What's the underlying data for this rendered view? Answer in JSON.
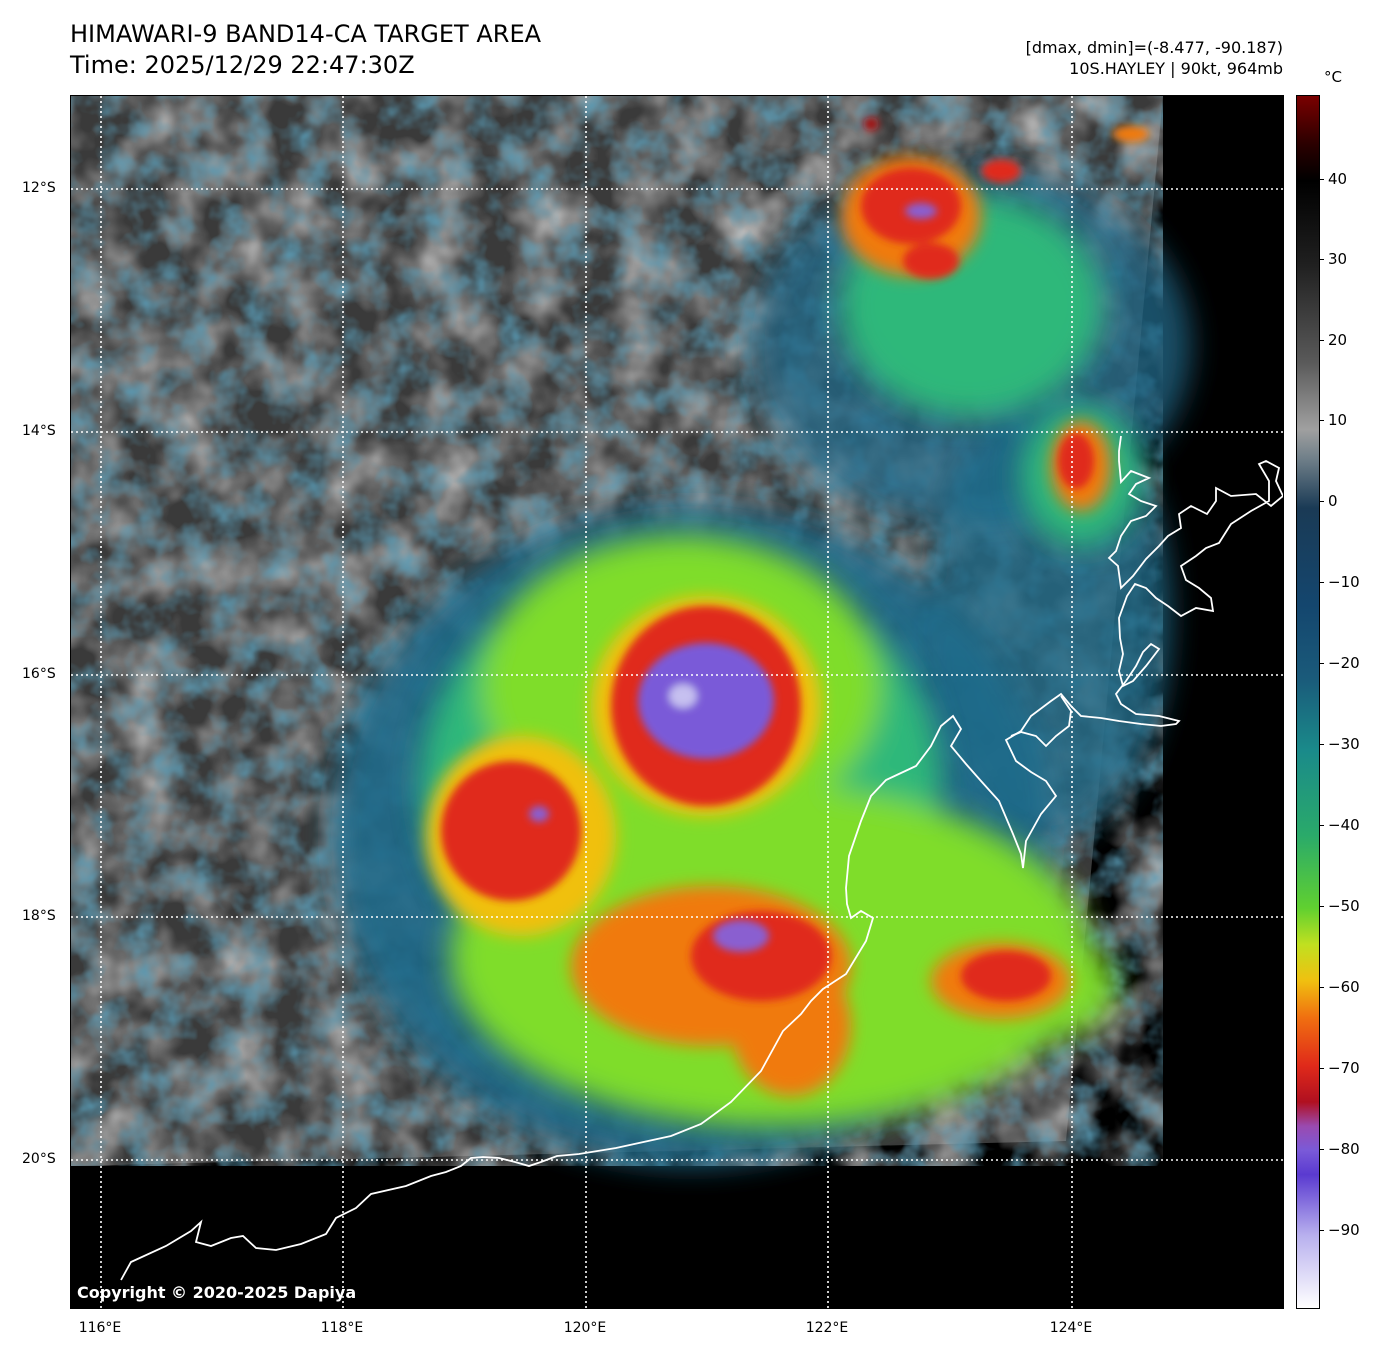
{
  "header": {
    "title": "HIMAWARI-9 BAND14-CA TARGET AREA",
    "time": "Time: 2025/12/29 22:47:30Z",
    "stats": "[dmax, dmin]=(-8.477, -90.187)",
    "storm": "10S.HAYLEY | 90kt, 964mb"
  },
  "map": {
    "copyright": "Copyright © 2020-2025 Dapiya",
    "lon_labels": [
      "116°E",
      "118°E",
      "120°E",
      "122°E",
      "124°E"
    ],
    "lat_labels": [
      "12°S",
      "14°S",
      "16°S",
      "18°S",
      "20°S"
    ],
    "colors": {
      "coldest_core": "#7a5ad8",
      "deep_convection": "#e02a1a",
      "cold_tops": "#f07a10",
      "cloud_mid": "#7fdd2a",
      "cloud_low": "#1f6a8a",
      "clear_sky": "#3a3a3a",
      "coastline": "#ffffff",
      "no_data": "#000000"
    }
  },
  "colorbar": {
    "unit": "°C",
    "ticks": [
      "40",
      "30",
      "20",
      "10",
      "0",
      "−10",
      "−20",
      "−30",
      "−40",
      "−50",
      "−60",
      "−70",
      "−80",
      "−90"
    ]
  }
}
